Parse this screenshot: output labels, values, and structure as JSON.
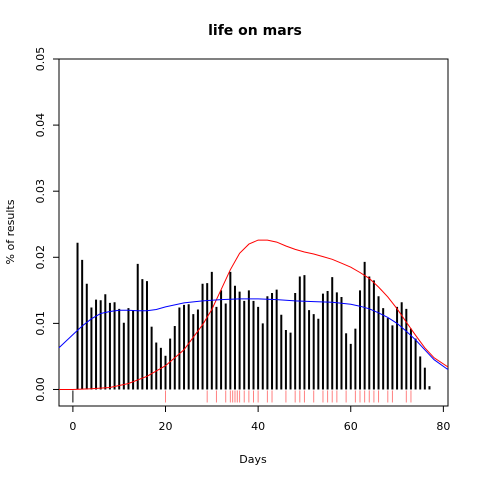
{
  "chart_data": {
    "type": "bar",
    "title": "life on mars",
    "xlabel": "Days",
    "ylabel": "% of results",
    "xlim": [
      -3,
      81
    ],
    "ylim": [
      -0.0025,
      0.05
    ],
    "x_ticks": [
      0,
      20,
      40,
      60,
      80
    ],
    "y_ticks": [
      0.0,
      0.01,
      0.02,
      0.03,
      0.04,
      0.05
    ],
    "y_tick_labels": [
      "0.00",
      "0.01",
      "0.02",
      "0.03",
      "0.04",
      "0.05"
    ],
    "bar_color": "#000000",
    "bars": {
      "x": [
        1,
        2,
        3,
        4,
        5,
        6,
        7,
        8,
        9,
        10,
        11,
        12,
        13,
        14,
        15,
        16,
        17,
        18,
        19,
        20,
        21,
        22,
        23,
        24,
        25,
        26,
        27,
        28,
        29,
        30,
        31,
        32,
        33,
        34,
        35,
        36,
        37,
        38,
        39,
        40,
        41,
        42,
        43,
        44,
        45,
        46,
        47,
        48,
        49,
        50,
        51,
        52,
        53,
        54,
        55,
        56,
        57,
        58,
        59,
        60,
        61,
        62,
        63,
        64,
        65,
        66,
        67,
        68,
        69,
        70,
        71,
        72,
        73,
        74,
        75,
        76,
        77
      ],
      "values": [
        0.0222,
        0.0196,
        0.016,
        0.0124,
        0.0136,
        0.0135,
        0.0144,
        0.0131,
        0.0132,
        0.0122,
        0.0101,
        0.0123,
        0.012,
        0.019,
        0.0167,
        0.0164,
        0.0095,
        0.0071,
        0.0063,
        0.0051,
        0.0077,
        0.0096,
        0.0124,
        0.0128,
        0.0129,
        0.0114,
        0.0121,
        0.016,
        0.0161,
        0.0178,
        0.0125,
        0.015,
        0.013,
        0.0178,
        0.0157,
        0.0148,
        0.0134,
        0.015,
        0.0134,
        0.0125,
        0.01,
        0.0141,
        0.0146,
        0.0151,
        0.0113,
        0.009,
        0.0086,
        0.0146,
        0.0171,
        0.0173,
        0.012,
        0.0114,
        0.0107,
        0.0145,
        0.0149,
        0.017,
        0.0147,
        0.014,
        0.0085,
        0.0069,
        0.0092,
        0.015,
        0.0193,
        0.0171,
        0.0165,
        0.0141,
        0.0123,
        0.0108,
        0.0097,
        0.0125,
        0.0132,
        0.0122,
        0.0092,
        0.0077,
        0.005,
        0.0033,
        0.0005
      ]
    },
    "series": [
      {
        "color": "#ff0000",
        "x": [
          -3,
          0,
          4,
          8,
          12,
          16,
          20,
          24,
          28,
          30,
          32,
          34,
          36,
          38,
          40,
          42,
          44,
          46,
          48,
          50,
          52,
          54,
          56,
          58,
          60,
          62,
          64,
          66,
          68,
          70,
          72,
          74,
          76,
          78,
          81
        ],
        "y": [
          0.0,
          0.0,
          0.0001,
          0.0003,
          0.0009,
          0.002,
          0.0036,
          0.006,
          0.0098,
          0.0121,
          0.0151,
          0.0181,
          0.0206,
          0.022,
          0.0226,
          0.0226,
          0.0223,
          0.0217,
          0.0212,
          0.0208,
          0.0205,
          0.0201,
          0.0197,
          0.0191,
          0.0185,
          0.0177,
          0.0168,
          0.0155,
          0.014,
          0.0122,
          0.0102,
          0.0082,
          0.0063,
          0.0048,
          0.0034
        ]
      },
      {
        "color": "#0000ff",
        "x": [
          -3,
          0,
          2,
          4,
          6,
          8,
          10,
          12,
          14,
          16,
          18,
          20,
          24,
          28,
          32,
          36,
          40,
          44,
          48,
          52,
          56,
          60,
          62,
          64,
          66,
          68,
          70,
          72,
          74,
          76,
          78,
          81
        ],
        "y": [
          0.0063,
          0.0083,
          0.0096,
          0.0107,
          0.0115,
          0.0118,
          0.012,
          0.012,
          0.0119,
          0.0119,
          0.0121,
          0.0125,
          0.0131,
          0.0134,
          0.0136,
          0.0137,
          0.0137,
          0.0136,
          0.0134,
          0.0133,
          0.0132,
          0.0129,
          0.0126,
          0.0122,
          0.0116,
          0.0109,
          0.01,
          0.0088,
          0.0075,
          0.006,
          0.0045,
          0.003
        ]
      }
    ],
    "rug": {
      "black_x": [
        0
      ],
      "red_x": [
        20,
        29,
        31,
        33,
        34,
        34.5,
        35,
        35.5,
        36,
        37,
        38,
        39,
        40,
        42,
        43,
        46,
        48,
        49,
        50,
        52,
        54,
        55,
        56,
        57,
        59,
        61,
        62,
        63,
        64,
        65,
        66,
        68,
        69,
        72,
        73
      ]
    }
  }
}
